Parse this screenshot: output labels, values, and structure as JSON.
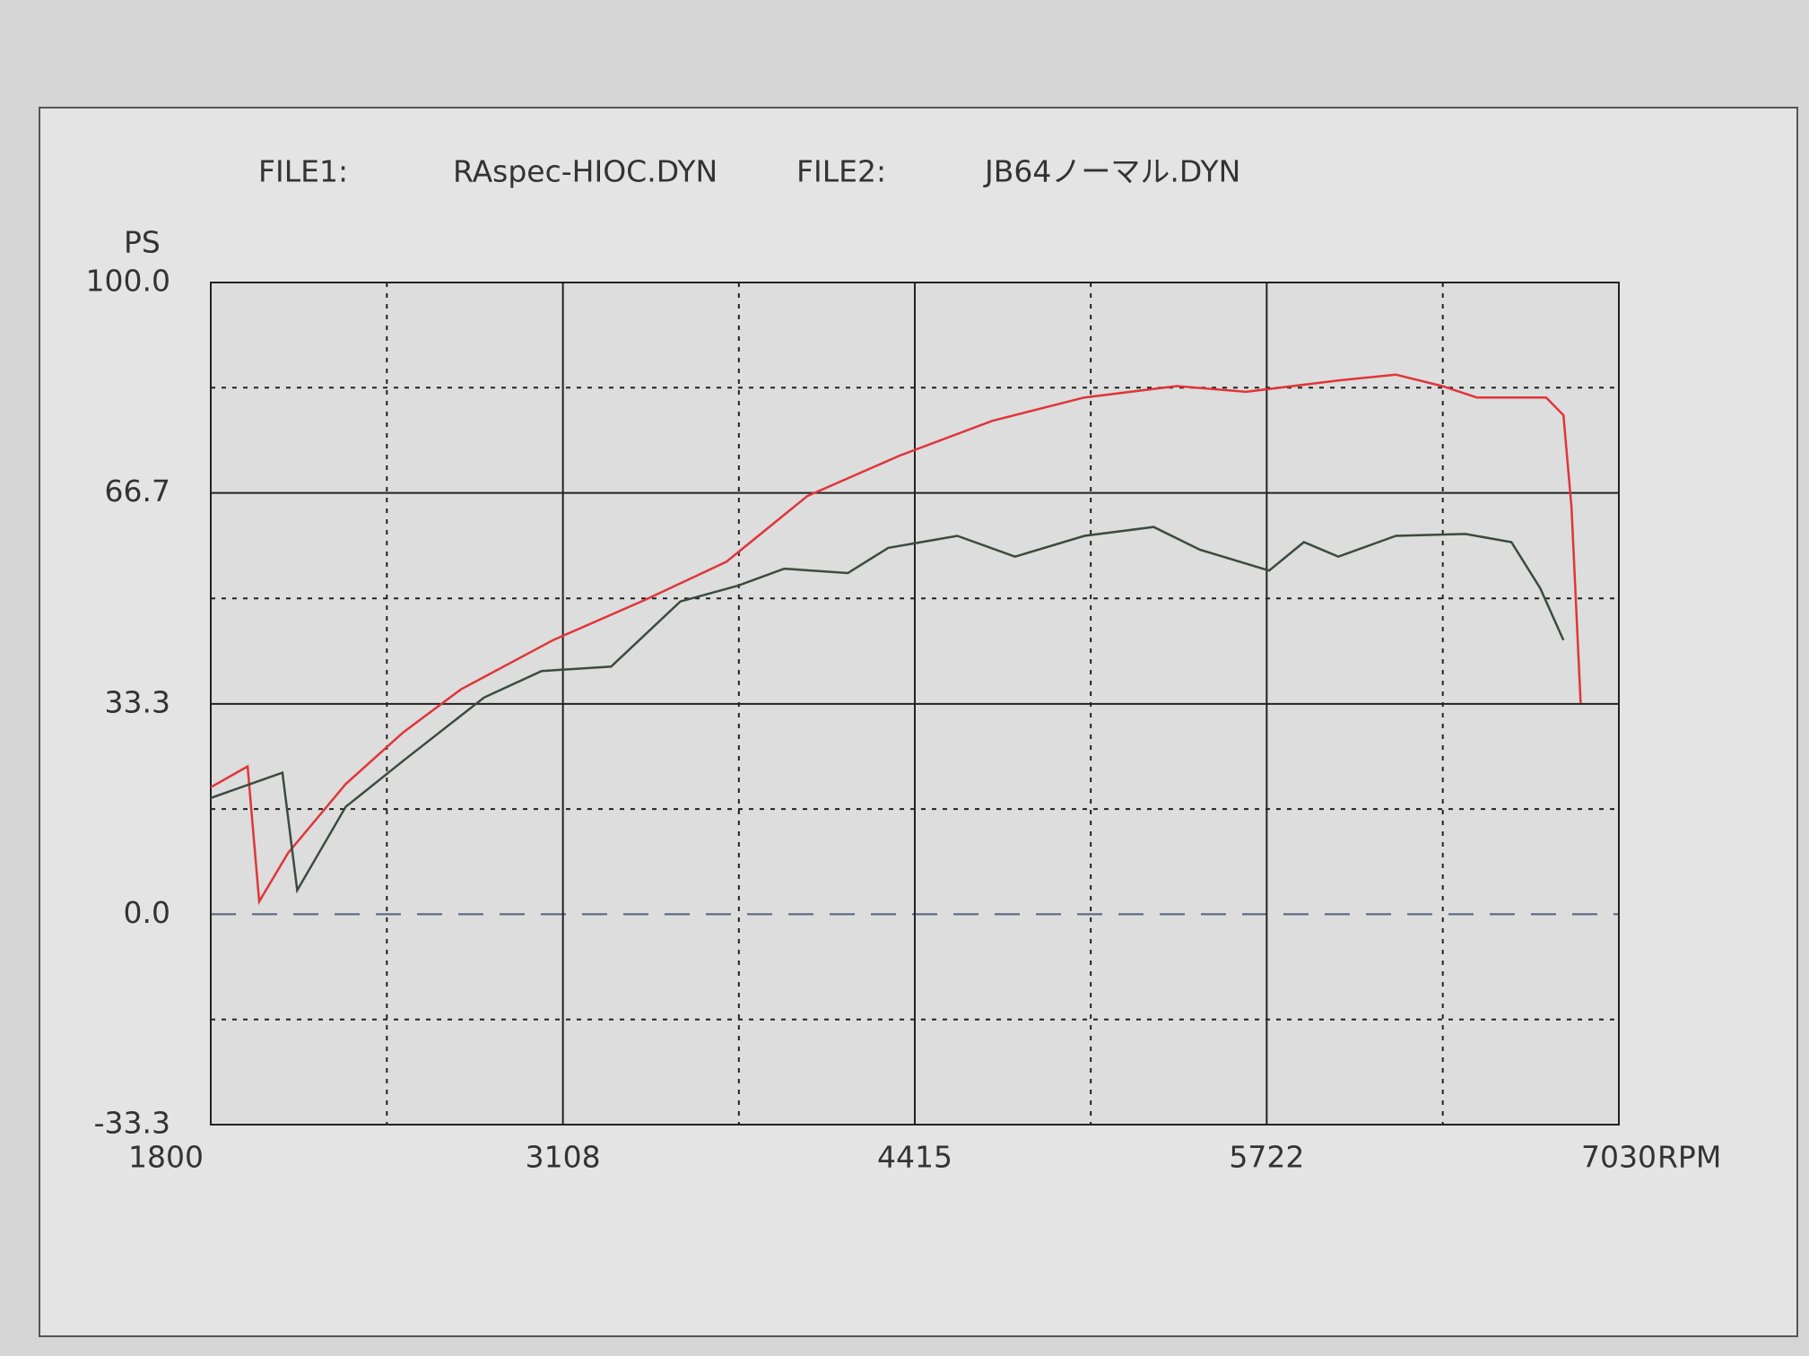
{
  "chart_data": {
    "type": "line",
    "ylabel": "PS",
    "xlabel": "RPM",
    "xlim": [
      1800,
      7030
    ],
    "xticks": [
      1800,
      3108,
      4415,
      5722,
      7030
    ],
    "ylim": [
      -33.3,
      100
    ],
    "yticks": [
      {
        "value": 100,
        "label": "100.0"
      },
      66.7,
      33.3,
      {
        "value": 0,
        "label": "0.0"
      },
      -33.3
    ],
    "grid": true,
    "series": [
      {
        "label": "FILE1:",
        "name": "RAspec-HIOC.DYN",
        "color": "#e0353a",
        "x": [
          1800,
          1937,
          1980,
          2087,
          2301,
          2515,
          2729,
          3072,
          3415,
          3715,
          4016,
          4359,
          4702,
          5045,
          5388,
          5645,
          5988,
          6202,
          6374,
          6502,
          6760,
          6824,
          6854,
          6888
        ],
        "values": [
          20.1,
          23.4,
          2.0,
          9.7,
          20.6,
          28.8,
          35.6,
          43.4,
          49.8,
          55.8,
          66.2,
          72.6,
          78.1,
          81.8,
          83.6,
          82.7,
          84.5,
          85.4,
          83.6,
          81.8,
          81.8,
          79.0,
          64.4,
          33.4
        ]
      },
      {
        "label": "FILE2:",
        "name": "JB64ノーマル.DYN",
        "color": "#3c4a40",
        "x": [
          1800,
          2066,
          2121,
          2301,
          2515,
          2815,
          3029,
          3287,
          3544,
          3758,
          3930,
          4166,
          4316,
          4573,
          4787,
          5045,
          5302,
          5474,
          5731,
          5860,
          5988,
          6202,
          6460,
          6631,
          6738,
          6824
        ],
        "values": [
          18.4,
          22.4,
          3.8,
          17.0,
          24.3,
          34.3,
          38.5,
          39.2,
          49.5,
          52.0,
          54.7,
          54.0,
          58.0,
          59.9,
          56.6,
          59.9,
          61.3,
          57.7,
          54.4,
          58.9,
          56.6,
          59.9,
          60.2,
          58.9,
          51.6,
          43.4
        ]
      }
    ]
  }
}
